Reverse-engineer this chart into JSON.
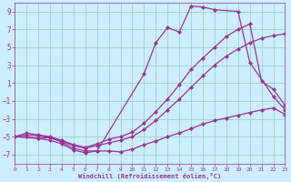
{
  "xlabel": "Windchill (Refroidissement éolien,°C)",
  "bg_color": "#cceeff",
  "line_color": "#993399",
  "grid_color": "#99ccbb",
  "xlim": [
    0,
    23
  ],
  "ylim": [
    -8,
    10
  ],
  "yticks": [
    -7,
    -5,
    -3,
    -1,
    1,
    3,
    5,
    7,
    9
  ],
  "xticks": [
    0,
    1,
    2,
    3,
    4,
    5,
    6,
    7,
    8,
    9,
    10,
    11,
    12,
    13,
    14,
    15,
    16,
    17,
    18,
    19,
    20,
    21,
    22,
    23
  ],
  "line_main_x": [
    0,
    2,
    3,
    4,
    5,
    6,
    7,
    11,
    12,
    13,
    14,
    15,
    16,
    17,
    19,
    20,
    22,
    23
  ],
  "line_main_y": [
    -5,
    -5.2,
    -5.4,
    -5.8,
    -6.5,
    -6.8,
    -6.6,
    2.0,
    5.5,
    7.2,
    6.7,
    9.6,
    9.5,
    9.2,
    9.0,
    3.3,
    -0.5,
    -2.0
  ],
  "line_upper_x": [
    0,
    1,
    2,
    3,
    4,
    5,
    6,
    7,
    8,
    9,
    10,
    11,
    12,
    13,
    14,
    15,
    16,
    17,
    18,
    19,
    20,
    21,
    22,
    23
  ],
  "line_upper_y": [
    -5,
    -4.6,
    -4.8,
    -5.0,
    -5.4,
    -5.9,
    -6.2,
    -5.8,
    -5.3,
    -5.0,
    -4.5,
    -3.5,
    -2.2,
    -0.8,
    0.8,
    2.5,
    3.8,
    5.0,
    6.2,
    7.0,
    7.6,
    1.2,
    0.3,
    -1.5
  ],
  "line_mid_x": [
    0,
    1,
    2,
    3,
    4,
    5,
    6,
    7,
    8,
    9,
    10,
    11,
    12,
    13,
    14,
    15,
    16,
    17,
    18,
    19,
    20,
    21,
    22,
    23
  ],
  "line_mid_y": [
    -5,
    -4.8,
    -4.9,
    -5.1,
    -5.5,
    -6.0,
    -6.3,
    -6.0,
    -5.7,
    -5.4,
    -5.0,
    -4.2,
    -3.2,
    -2.0,
    -0.8,
    0.5,
    1.8,
    3.0,
    4.0,
    4.8,
    5.5,
    6.0,
    6.3,
    6.5
  ],
  "line_lower_x": [
    0,
    1,
    2,
    3,
    4,
    5,
    6,
    7,
    8,
    9,
    10,
    11,
    12,
    13,
    14,
    15,
    16,
    17,
    18,
    19,
    20,
    21,
    22,
    23
  ],
  "line_lower_y": [
    -5,
    -5.0,
    -5.2,
    -5.1,
    -5.6,
    -6.3,
    -6.6,
    -6.6,
    -6.6,
    -6.7,
    -6.4,
    -5.9,
    -5.5,
    -5.0,
    -4.6,
    -4.1,
    -3.6,
    -3.2,
    -2.9,
    -2.6,
    -2.3,
    -2.0,
    -1.8,
    -2.5
  ],
  "marker": "D",
  "markersize": 2.5,
  "linewidth": 0.9
}
